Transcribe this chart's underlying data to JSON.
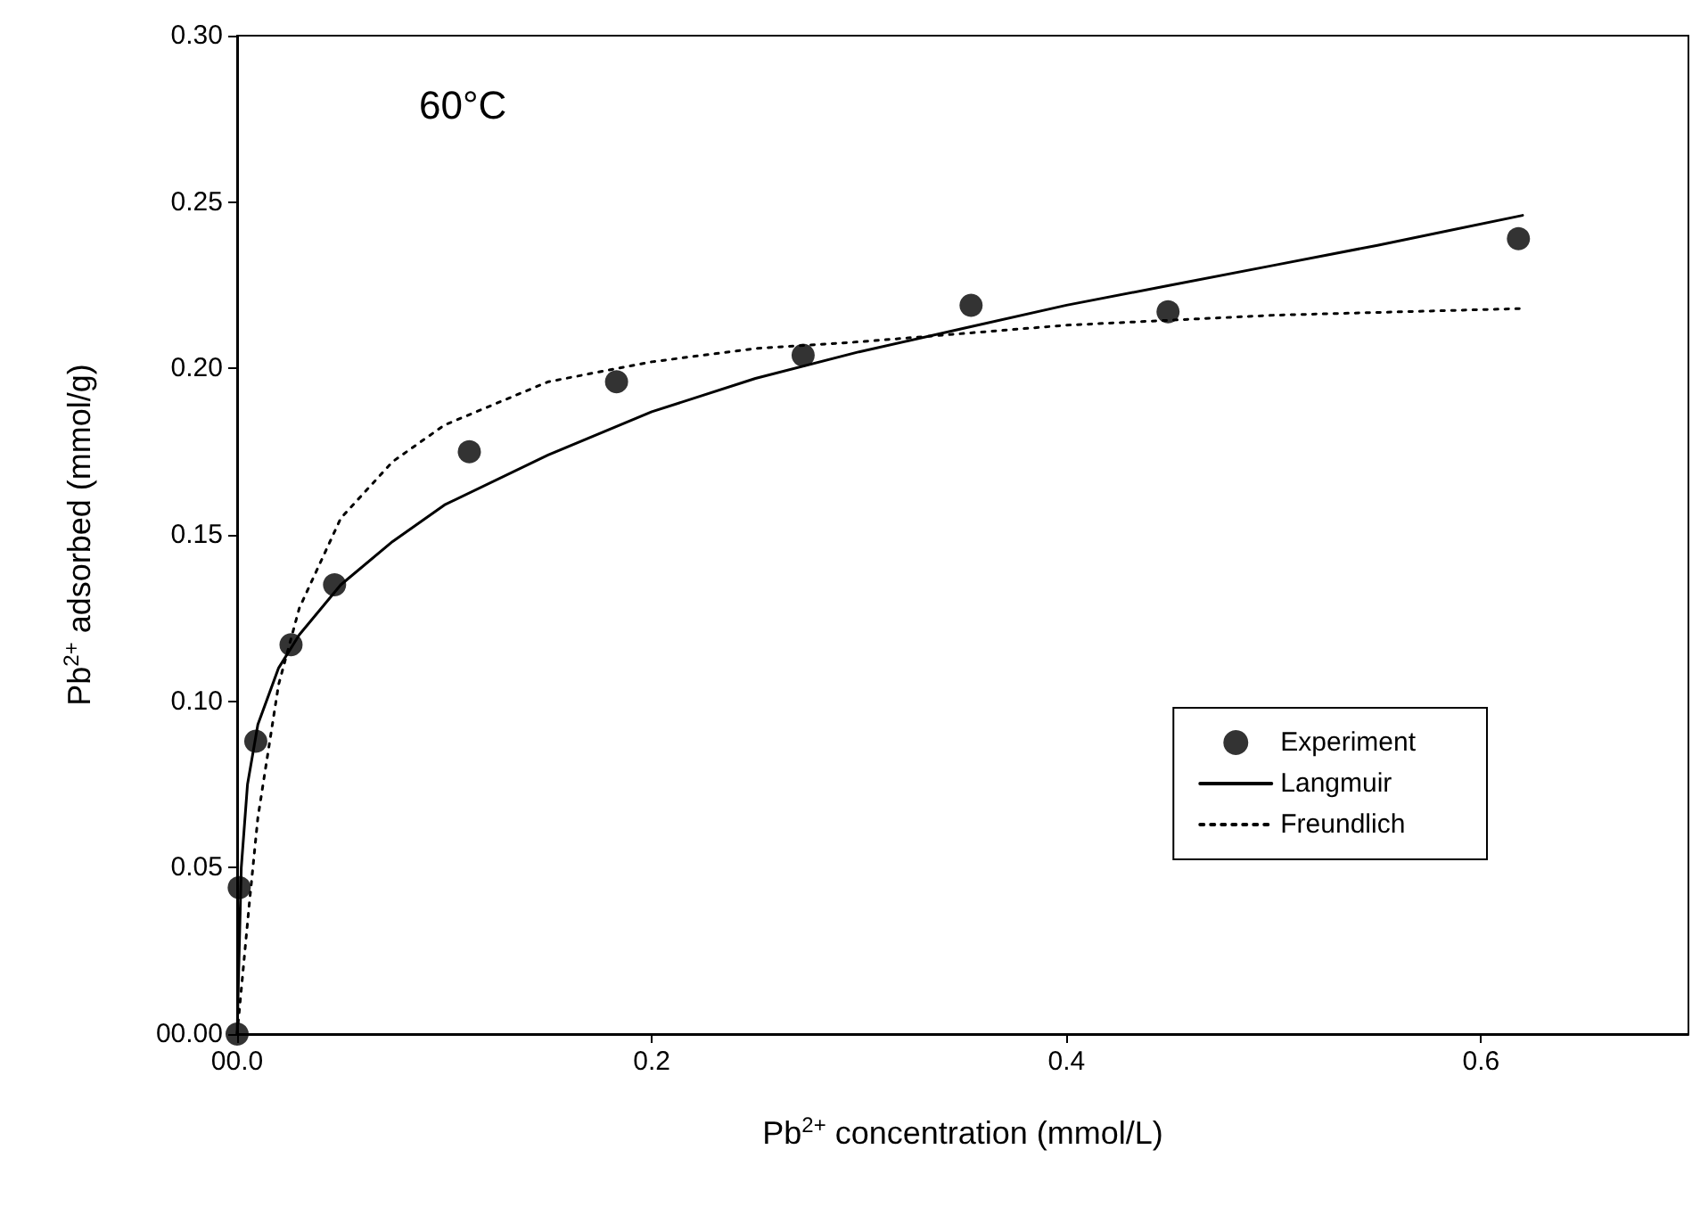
{
  "chart_data": {
    "type": "scatter",
    "xlabel": "Pb$^{2+}$ concentration (mmol/L)",
    "ylabel": "Pb$^{2+}$ adsorbed (mmol/g)",
    "annotations": [
      "60°C"
    ],
    "xlim": [
      0,
      0.7
    ],
    "xticks": [
      {
        "value": 0,
        "label": "00.0"
      },
      0.2,
      0.4,
      0.6
    ],
    "ylim": [
      0,
      0.3
    ],
    "yticks": [
      {
        "value": 0,
        "label": "00.00"
      },
      0.05,
      {
        "value": 0.1,
        "label": "0.10"
      },
      0.15,
      {
        "value": 0.2,
        "label": "0.20"
      },
      0.25,
      {
        "value": 0.3,
        "label": "0.30"
      }
    ],
    "grid": false,
    "legend": "bottom right",
    "series": [
      {
        "name": "Experiment",
        "type": "scatter",
        "marker": "circle",
        "color": "#000000",
        "x": [
          0,
          0.001,
          0.009,
          0.026,
          0.047,
          0.112,
          0.183,
          0.273,
          0.354,
          0.449,
          0.618
        ],
        "values": [
          0,
          0.044,
          0.088,
          0.117,
          0.135,
          0.175,
          0.196,
          0.204,
          0.219,
          0.217,
          0.239
        ]
      },
      {
        "name": "Langmuir",
        "type": "line",
        "marker": "none",
        "line_style": "solid",
        "color": "#000000",
        "x": [
          0,
          0.002,
          0.005,
          0.01,
          0.02,
          0.03,
          0.05,
          0.075,
          0.1,
          0.15,
          0.2,
          0.25,
          0.3,
          0.35,
          0.4,
          0.45,
          0.5,
          0.55,
          0.62
        ],
        "values": [
          0,
          0.05,
          0.075,
          0.093,
          0.11,
          0.12,
          0.135,
          0.148,
          0.159,
          0.174,
          0.187,
          0.197,
          0.205,
          0.212,
          0.219,
          0.225,
          0.231,
          0.237,
          0.246
        ]
      },
      {
        "name": "Freundlich",
        "type": "line",
        "marker": "none",
        "line_style": "dotted",
        "color": "#000000",
        "x": [
          0,
          0.003,
          0.006,
          0.01,
          0.02,
          0.03,
          0.05,
          0.075,
          0.1,
          0.15,
          0.2,
          0.25,
          0.3,
          0.4,
          0.5,
          0.62
        ],
        "values": [
          0,
          0.02,
          0.04,
          0.065,
          0.105,
          0.128,
          0.155,
          0.172,
          0.183,
          0.196,
          0.202,
          0.206,
          0.208,
          0.213,
          0.216,
          0.218
        ]
      }
    ]
  }
}
